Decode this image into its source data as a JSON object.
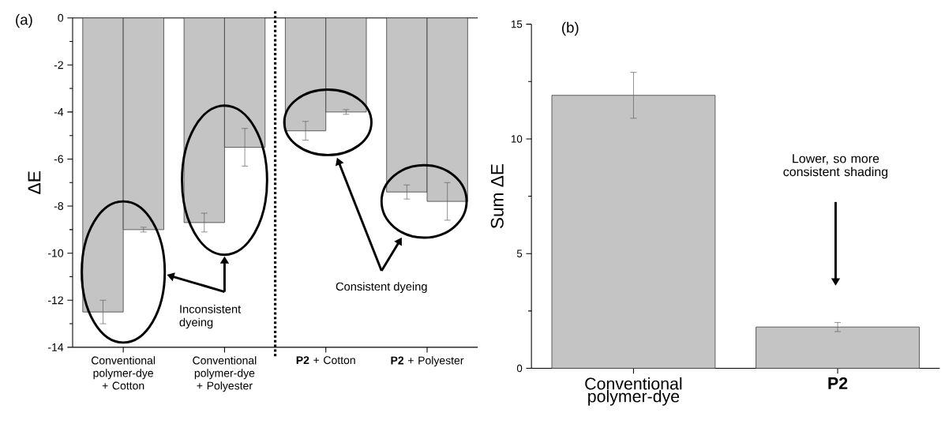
{
  "chart_data": [
    {
      "type": "bar",
      "ylabel": "ΔE",
      "categories": [
        "Conventional polymer-dye + Cotton",
        "Conventional polymer-dye + Polyester",
        "**P2** + Cotton",
        "**P2** + Polyester"
      ],
      "series": [
        {
          "color": "#c4c4c4",
          "values": [
            -12.5,
            -8.7,
            -4.8,
            -7.4
          ],
          "errors": [
            0.5,
            0.4,
            0.4,
            0.3
          ]
        },
        {
          "color": "#c4c4c4",
          "values": [
            -9.0,
            -5.5,
            -4.0,
            -7.8
          ],
          "errors": [
            0.1,
            0.8,
            0.1,
            0.8
          ]
        }
      ],
      "ylim": [
        -14,
        0
      ],
      "yticks": [
        -14,
        -12,
        -10,
        -8,
        -6,
        -4,
        -2,
        0
      ],
      "annotations": [
        "(a)",
        "Inconsistent dyeing",
        "Consistent dyeing"
      ]
    },
    {
      "type": "bar",
      "ylabel": "Sum ΔE",
      "categories": [
        "Conventional polymer-dye",
        "**P2**"
      ],
      "series": [
        {
          "color": "#c4c4c4",
          "values": [
            11.9,
            1.8
          ],
          "errors": [
            1.0,
            0.2
          ]
        }
      ],
      "ylim": [
        0,
        15
      ],
      "yticks": [
        0,
        5,
        10,
        15
      ],
      "annotations": [
        "(b)",
        "Lower, so more consistent shading"
      ]
    }
  ]
}
